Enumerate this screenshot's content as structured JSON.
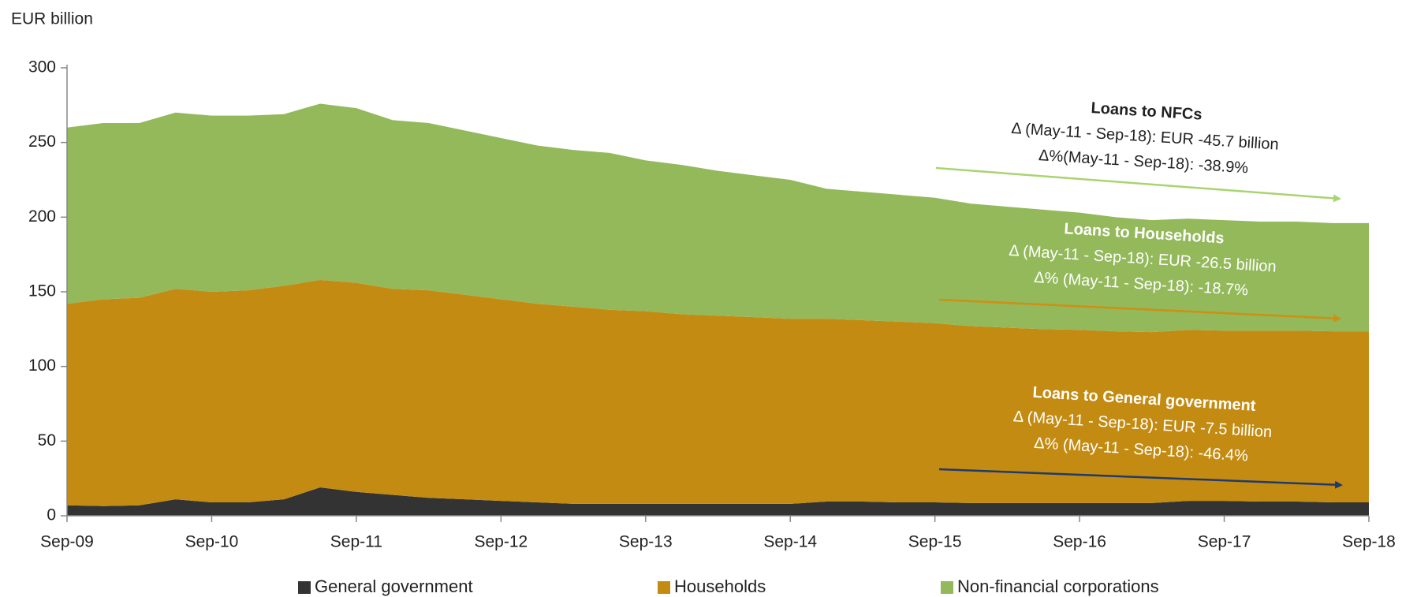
{
  "chart_data": {
    "type": "stacked-area",
    "y_label": "EUR billion",
    "categories": [
      "Sep-09",
      null,
      null,
      null,
      "Sep-10",
      null,
      null,
      null,
      "Sep-11",
      null,
      null,
      null,
      "Sep-12",
      null,
      null,
      null,
      "Sep-13",
      null,
      null,
      null,
      "Sep-14",
      null,
      null,
      null,
      "Sep-15",
      null,
      null,
      null,
      "Sep-16",
      null,
      null,
      null,
      "Sep-17",
      null,
      null,
      null,
      "Sep-18"
    ],
    "series": [
      {
        "name": "General government",
        "color": "#333333",
        "values": [
          7,
          6.5,
          7,
          11,
          9,
          9,
          11,
          19,
          16,
          14,
          12,
          11,
          10,
          9,
          8,
          8,
          8,
          8,
          8,
          8,
          8,
          9.5,
          9.5,
          9,
          9,
          8.5,
          8.5,
          8.5,
          8.5,
          8.5,
          8.5,
          10,
          10,
          9.5,
          9.5,
          9,
          9
        ]
      },
      {
        "name": "Households",
        "color": "#c38b11",
        "values": [
          135,
          138.5,
          139,
          141,
          141,
          142,
          143,
          139,
          140,
          138,
          139,
          137,
          135,
          133,
          132,
          130,
          129,
          127,
          126,
          125,
          124,
          122.5,
          121.5,
          121,
          120,
          118.5,
          117.5,
          116.5,
          116,
          115,
          114.5,
          114.5,
          114,
          114.5,
          114.5,
          114.5,
          114.5
        ]
      },
      {
        "name": "Non-financial corporations",
        "color": "#93b95b",
        "values": [
          118,
          118,
          117,
          118,
          118,
          117,
          115,
          118,
          117,
          113,
          112,
          110,
          108,
          106,
          105,
          105,
          101,
          100,
          97,
          95,
          93,
          87,
          86,
          85,
          84,
          82,
          81,
          80,
          78.5,
          76.5,
          75,
          74.5,
          74,
          73,
          73,
          72.5,
          72.5
        ]
      }
    ],
    "ylim": [
      0,
      300
    ],
    "yticks": [
      0,
      50,
      100,
      150,
      200,
      250,
      300
    ],
    "grid": false,
    "legend": "bottom",
    "annotations": [
      {
        "lines": [
          "Loans to NFCs",
          "Δ (May-11 - Sep-18): EUR -45.7 billion",
          "Δ%(May-11 - Sep-18): -38.9%"
        ],
        "color": "#222222",
        "arrow_color": "#a9d46f"
      },
      {
        "lines": [
          "Loans to Households",
          "Δ (May-11 - Sep-18): EUR -26.5 billion",
          "Δ% (May-11 - Sep-18): -18.7%"
        ],
        "color": "#ffffff",
        "arrow_color": "#d08f12"
      },
      {
        "lines": [
          "Loans to General government",
          "Δ (May-11 - Sep-18): EUR -7.5 billion",
          "Δ% (May-11 - Sep-18): -46.4%"
        ],
        "color": "#ffffff",
        "arrow_color": "#1f3a6e"
      }
    ]
  }
}
